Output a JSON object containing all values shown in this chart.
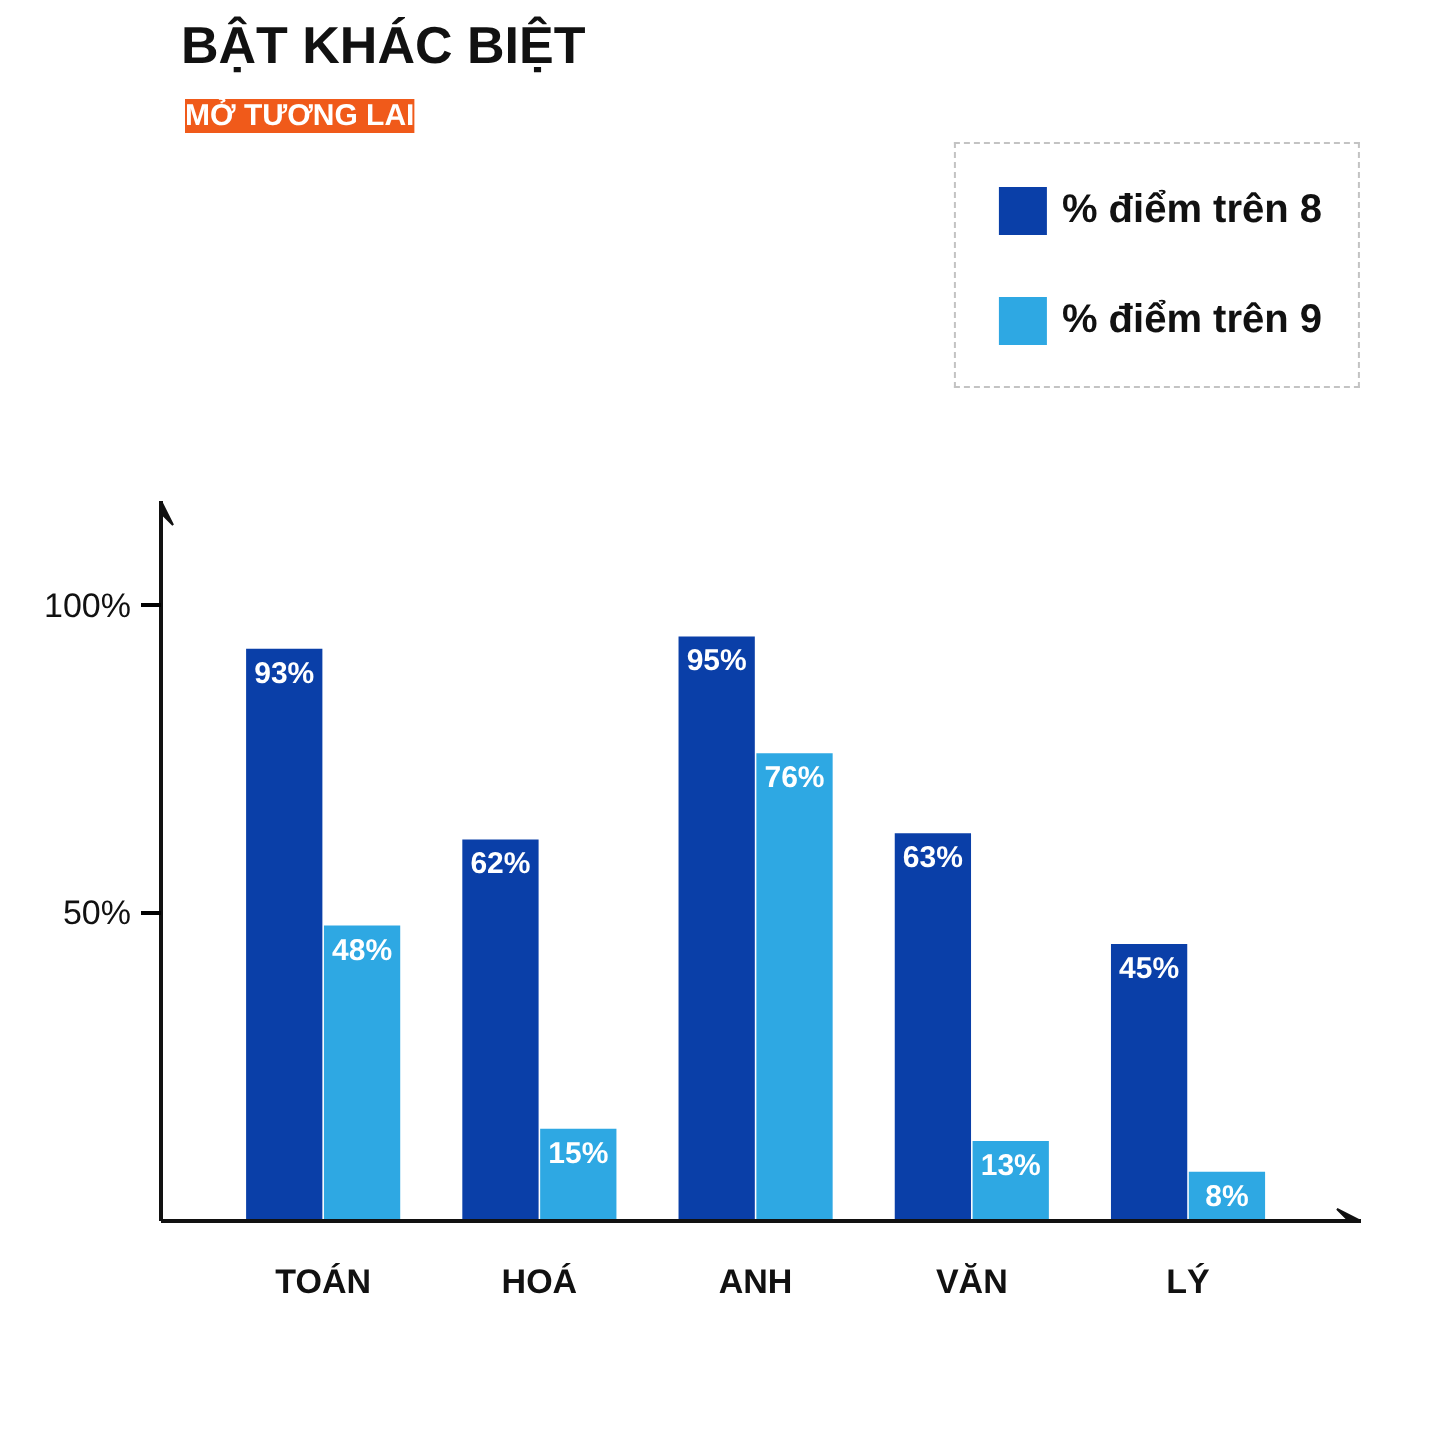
{
  "chart_data": {
    "type": "bar",
    "title": "BẬT KHÁC BIỆT",
    "subtitle": "MỞ TƯƠNG LAI",
    "categories": [
      "TOÁN",
      "HOÁ",
      "ANH",
      "VĂN",
      "LÝ"
    ],
    "series": [
      {
        "name": "% điểm trên 8",
        "color": "#0a3fa8",
        "values": [
          93,
          62,
          95,
          63,
          45
        ],
        "value_labels": [
          "93%",
          "62%",
          "95%",
          "63%",
          "45%"
        ]
      },
      {
        "name": "% điểm trên 9",
        "color": "#2ea8e3",
        "values": [
          48,
          15,
          76,
          13,
          8
        ],
        "value_labels": [
          "48%",
          "15%",
          "76%",
          "13%",
          "8%"
        ]
      }
    ],
    "ylim": [
      0,
      117
    ],
    "yticks": [
      {
        "value": 50,
        "label": "50%"
      },
      {
        "value": 100,
        "label": "100%"
      }
    ],
    "grid": false,
    "legend": "top right"
  }
}
